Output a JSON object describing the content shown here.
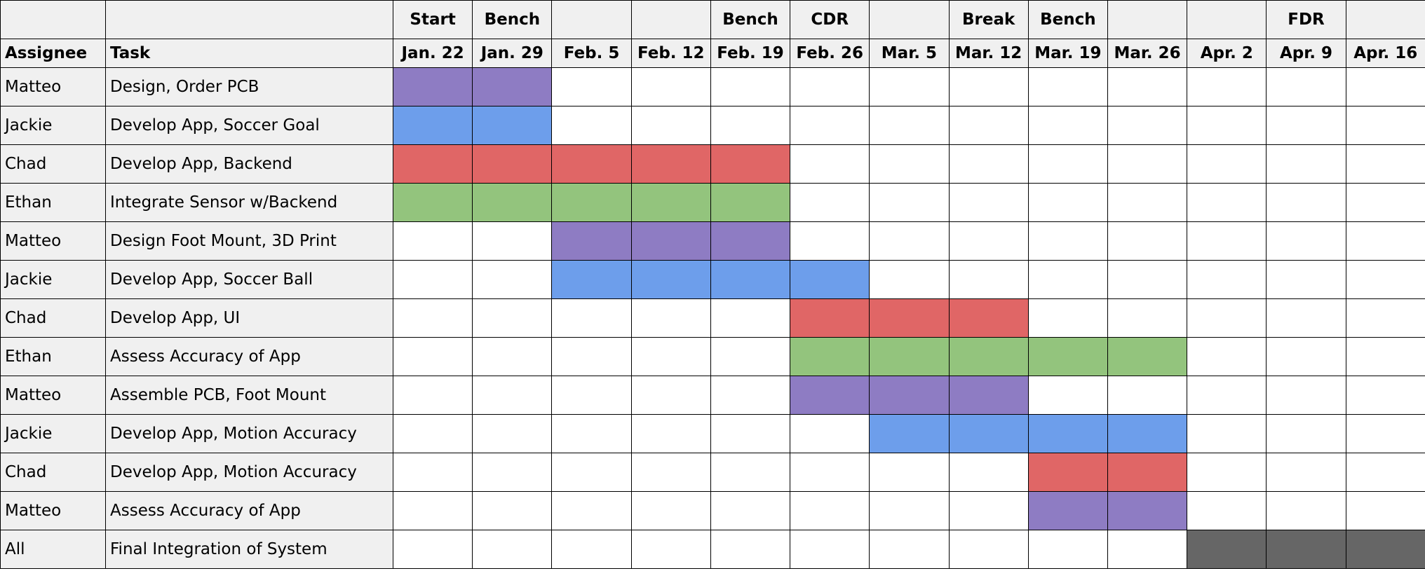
{
  "headers": {
    "assignee": "Assignee",
    "task": "Task"
  },
  "weeks": [
    {
      "date": "Jan. 22",
      "phase": "Start"
    },
    {
      "date": "Jan. 29",
      "phase": "Bench"
    },
    {
      "date": "Feb. 5",
      "phase": ""
    },
    {
      "date": "Feb. 12",
      "phase": ""
    },
    {
      "date": "Feb. 19",
      "phase": "Bench"
    },
    {
      "date": "Feb. 26",
      "phase": "CDR"
    },
    {
      "date": "Mar. 5",
      "phase": ""
    },
    {
      "date": "Mar. 12",
      "phase": "Break"
    },
    {
      "date": "Mar. 19",
      "phase": "Bench"
    },
    {
      "date": "Mar. 26",
      "phase": ""
    },
    {
      "date": "Apr. 2",
      "phase": ""
    },
    {
      "date": "Apr. 9",
      "phase": "FDR"
    },
    {
      "date": "Apr. 16",
      "phase": ""
    }
  ],
  "colors": {
    "purple": "#8e7cc3",
    "blue": "#6d9eeb",
    "red": "#e06666",
    "green": "#93c47d",
    "gray": "#666666"
  },
  "tasks": [
    {
      "assignee": "Matteo",
      "task": "Design, Order PCB",
      "color": "purple",
      "weeks": [
        0,
        1
      ]
    },
    {
      "assignee": "Jackie",
      "task": "Develop App, Soccer Goal",
      "color": "blue",
      "weeks": [
        0,
        1
      ]
    },
    {
      "assignee": "Chad",
      "task": "Develop App, Backend",
      "color": "red",
      "weeks": [
        0,
        1,
        2,
        3,
        4
      ]
    },
    {
      "assignee": "Ethan",
      "task": "Integrate Sensor w/Backend",
      "color": "green",
      "weeks": [
        0,
        1,
        2,
        3,
        4
      ]
    },
    {
      "assignee": "Matteo",
      "task": "Design Foot Mount, 3D Print",
      "color": "purple",
      "weeks": [
        2,
        3,
        4
      ]
    },
    {
      "assignee": "Jackie",
      "task": "Develop App, Soccer Ball",
      "color": "blue",
      "weeks": [
        2,
        3,
        4,
        5
      ]
    },
    {
      "assignee": "Chad",
      "task": "Develop App, UI",
      "color": "red",
      "weeks": [
        5,
        6,
        7
      ]
    },
    {
      "assignee": "Ethan",
      "task": "Assess Accuracy of App",
      "color": "green",
      "weeks": [
        5,
        6,
        7,
        8,
        9
      ]
    },
    {
      "assignee": "Matteo",
      "task": "Assemble PCB, Foot Mount",
      "color": "purple",
      "weeks": [
        5,
        6,
        7
      ]
    },
    {
      "assignee": "Jackie",
      "task": "Develop App, Motion Accuracy",
      "color": "blue",
      "weeks": [
        6,
        7,
        8,
        9
      ]
    },
    {
      "assignee": "Chad",
      "task": "Develop App, Motion Accuracy",
      "color": "red",
      "weeks": [
        8,
        9
      ]
    },
    {
      "assignee": "Matteo",
      "task": "Assess Accuracy of App",
      "color": "purple",
      "weeks": [
        8,
        9
      ]
    },
    {
      "assignee": "All",
      "task": "Final Integration of System",
      "color": "gray",
      "weeks": [
        10,
        11,
        12
      ]
    }
  ]
}
